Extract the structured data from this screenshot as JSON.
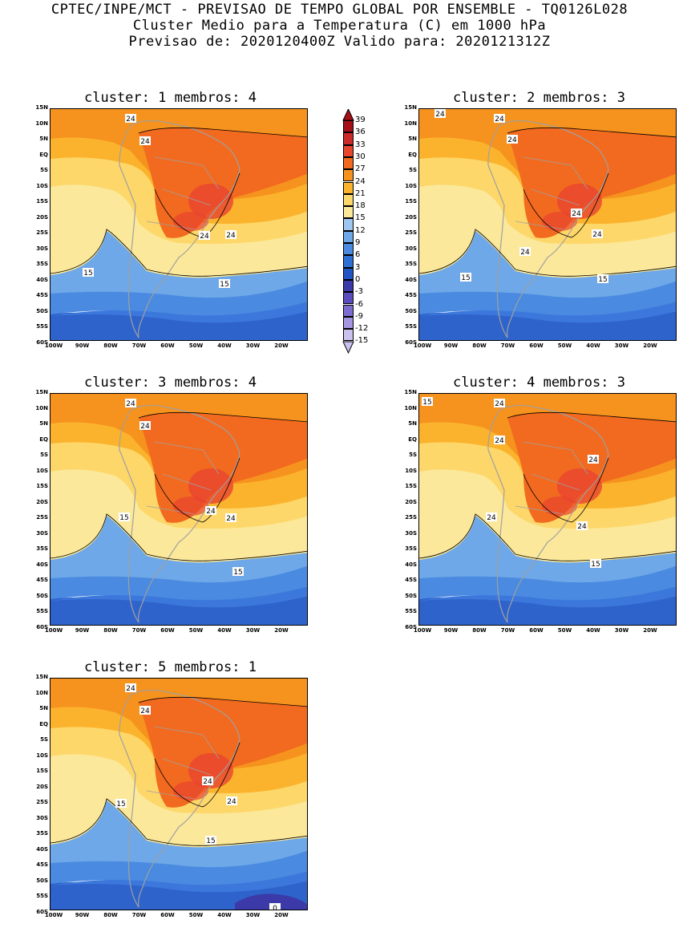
{
  "header": {
    "line1": "CPTEC/INPE/MCT - PREVISAO DE TEMPO GLOBAL POR ENSEMBLE - TQ0126L028",
    "line2": "Cluster Medio para a Temperatura (C) em 1000 hPa",
    "line3": "Previsao de: 2020120400Z   Valido para: 2020121312Z"
  },
  "lat_labels": [
    "15N",
    "10N",
    "5N",
    "EQ",
    "5S",
    "10S",
    "15S",
    "20S",
    "25S",
    "30S",
    "35S",
    "40S",
    "45S",
    "50S",
    "55S",
    "60S"
  ],
  "lon_labels": [
    "100W",
    "90W",
    "80W",
    "70W",
    "60W",
    "50W",
    "40W",
    "30W",
    "20W"
  ],
  "colorbar": {
    "labels": [
      "39",
      "36",
      "33",
      "30",
      "27",
      "24",
      "21",
      "18",
      "15",
      "12",
      "9",
      "6",
      "3",
      "0",
      "-3",
      "-6",
      "-9",
      "-12",
      "-15"
    ],
    "colors": [
      "#a50f15",
      "#cb2a2a",
      "#e8452f",
      "#f26a1f",
      "#f6921e",
      "#fbb32d",
      "#fdd76a",
      "#fbe89a",
      "#9dc6f0",
      "#6ea8e8",
      "#4a8ae0",
      "#2e6fd6",
      "#2255c4",
      "#3b3aa8",
      "#5a4cbf",
      "#7d6dd0",
      "#a496e0",
      "#cbc1ef"
    ]
  },
  "panels": [
    {
      "title": "cluster: 1   membros: 4",
      "contour_labels": [
        "24",
        "24",
        "24",
        "24",
        "15",
        "15"
      ]
    },
    {
      "title": "cluster: 2   membros: 3",
      "contour_labels": [
        "24",
        "24",
        "24",
        "24",
        "24",
        "24",
        "15",
        "15"
      ]
    },
    {
      "title": "cluster: 3   membros: 4",
      "contour_labels": [
        "24",
        "24",
        "24",
        "24",
        "15",
        "15"
      ]
    },
    {
      "title": "cluster: 4   membros: 3",
      "contour_labels": [
        "24",
        "24",
        "24",
        "24",
        "24",
        "15",
        "15"
      ]
    },
    {
      "title": "cluster: 5   membros: 1",
      "contour_labels": [
        "24",
        "24",
        "24",
        "24",
        "15",
        "15",
        "0"
      ]
    }
  ]
}
